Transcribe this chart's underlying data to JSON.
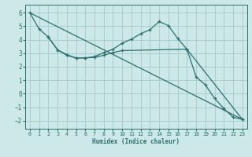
{
  "xlabel": "Humidex (Indice chaleur)",
  "bg_color": "#cce8e8",
  "line_color": "#2d7070",
  "grid_color": "#aacccc",
  "xlim": [
    -0.5,
    23.5
  ],
  "ylim": [
    -2.6,
    6.6
  ],
  "xticks": [
    0,
    1,
    2,
    3,
    4,
    5,
    6,
    7,
    8,
    9,
    10,
    11,
    12,
    13,
    14,
    15,
    16,
    17,
    18,
    19,
    20,
    21,
    22,
    23
  ],
  "yticks": [
    -2,
    -1,
    0,
    1,
    2,
    3,
    4,
    5,
    6
  ],
  "line1_x": [
    0,
    1,
    2,
    3,
    4,
    5,
    6,
    7,
    8,
    9,
    10,
    11,
    12,
    13,
    14,
    15,
    16,
    17,
    18,
    19,
    20,
    21,
    22,
    23
  ],
  "line1_y": [
    6.0,
    4.8,
    4.2,
    3.25,
    2.85,
    2.65,
    2.65,
    2.75,
    3.05,
    3.3,
    3.75,
    4.05,
    4.45,
    4.75,
    5.35,
    5.05,
    4.1,
    3.3,
    1.25,
    0.65,
    -0.35,
    -1.1,
    -1.75,
    -1.9
  ],
  "line2_x": [
    0,
    23
  ],
  "line2_y": [
    6.0,
    -1.9
  ],
  "line3_x": [
    2,
    3,
    4,
    5,
    6,
    7,
    8,
    9,
    10,
    17,
    23
  ],
  "line3_y": [
    4.2,
    3.25,
    2.9,
    2.65,
    2.65,
    2.7,
    2.85,
    3.05,
    3.2,
    3.3,
    -1.9
  ]
}
